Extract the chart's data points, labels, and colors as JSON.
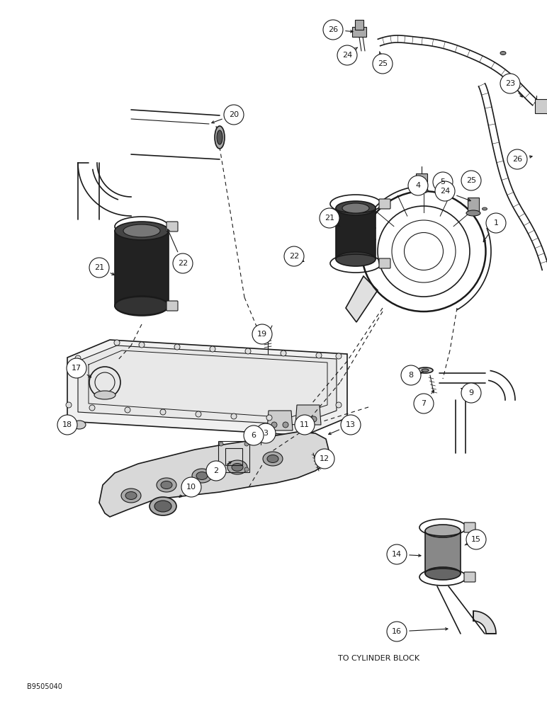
{
  "background_color": "#ffffff",
  "line_color": "#1a1a1a",
  "label_color": "#000000",
  "fig_width": 7.72,
  "fig_height": 10.0,
  "dpi": 100,
  "bottom_text": "TO CYLINDER BLOCK",
  "bottom_code": "B9505040"
}
